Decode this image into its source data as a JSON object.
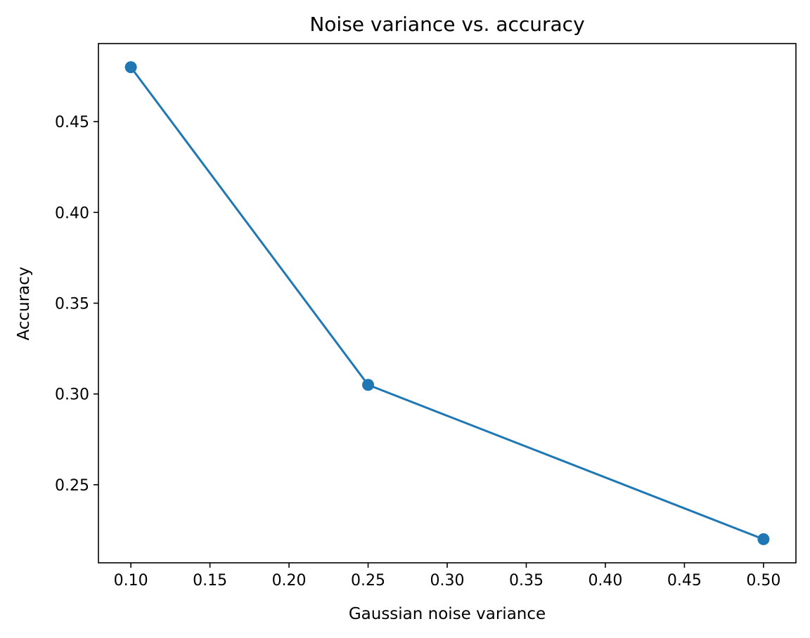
{
  "chart_data": {
    "type": "line",
    "title": "Noise variance vs. accuracy",
    "xlabel": "Gaussian noise variance",
    "ylabel": "Accuracy",
    "x": [
      0.1,
      0.25,
      0.5
    ],
    "series": [
      {
        "values": [
          0.48,
          0.305,
          0.22
        ],
        "color": "#1f77b4",
        "marker": "circle"
      }
    ],
    "xlim": [
      0.0795,
      0.5205
    ],
    "ylim": [
      0.207,
      0.493
    ],
    "xticks": [
      0.1,
      0.15,
      0.2,
      0.25,
      0.3,
      0.35,
      0.4,
      0.45,
      0.5
    ],
    "xtick_labels": [
      "0.10",
      "0.15",
      "0.20",
      "0.25",
      "0.30",
      "0.35",
      "0.40",
      "0.45",
      "0.50"
    ],
    "yticks": [
      0.25,
      0.3,
      0.35,
      0.4,
      0.45
    ],
    "ytick_labels": [
      "0.25",
      "0.30",
      "0.35",
      "0.40",
      "0.45"
    ],
    "grid": false,
    "legend": "none"
  }
}
